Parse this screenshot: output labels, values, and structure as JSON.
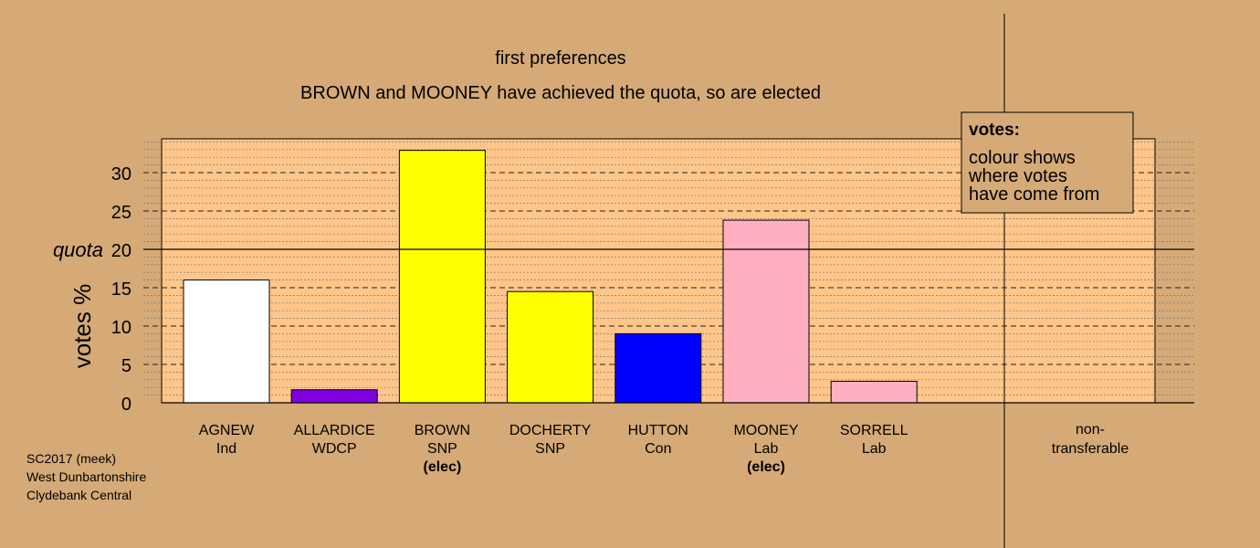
{
  "chart_data": {
    "type": "bar",
    "title": "first preferences",
    "subtitle": "BROWN and MOONEY have achieved the quota, so are elected",
    "ylabel": "votes %",
    "ylim": [
      0,
      35
    ],
    "yticks": [
      0,
      5,
      10,
      15,
      20,
      25,
      30
    ],
    "quota": 20,
    "quota_label": "quota",
    "grid": true,
    "categories": [
      {
        "name": "AGNEW",
        "party": "Ind",
        "value": 16.0,
        "color": "#ffffff",
        "elected": ""
      },
      {
        "name": "ALLARDICE",
        "party": "WDCP",
        "value": 1.7,
        "color": "#8000e0",
        "elected": ""
      },
      {
        "name": "BROWN",
        "party": "SNP",
        "value": 32.9,
        "color": "#ffff00",
        "elected": "(elec)"
      },
      {
        "name": "DOCHERTY",
        "party": "SNP",
        "value": 14.5,
        "color": "#ffff00",
        "elected": ""
      },
      {
        "name": "HUTTON",
        "party": "Con",
        "value": 9.0,
        "color": "#0000ff",
        "elected": ""
      },
      {
        "name": "MOONEY",
        "party": "Lab",
        "value": 23.8,
        "color": "#ffb0c0",
        "elected": "(elec)"
      },
      {
        "name": "SORRELL",
        "party": "Lab",
        "value": 2.8,
        "color": "#ffb0c0",
        "elected": ""
      }
    ],
    "nontransferable": {
      "line1": "non-",
      "line2": "transferable",
      "value": 0
    },
    "legend": {
      "title": "votes:",
      "lines": [
        "colour shows",
        "where votes",
        "have come from"
      ],
      "position": "top-right"
    }
  },
  "footer": {
    "line1": "SC2017 (meek)",
    "line2": "West Dunbartonshire",
    "line3": "Clydebank Central"
  },
  "colors": {
    "background": "#d5aa77",
    "plot_area": "#ffc68a",
    "legend_box": "#d5aa77"
  }
}
